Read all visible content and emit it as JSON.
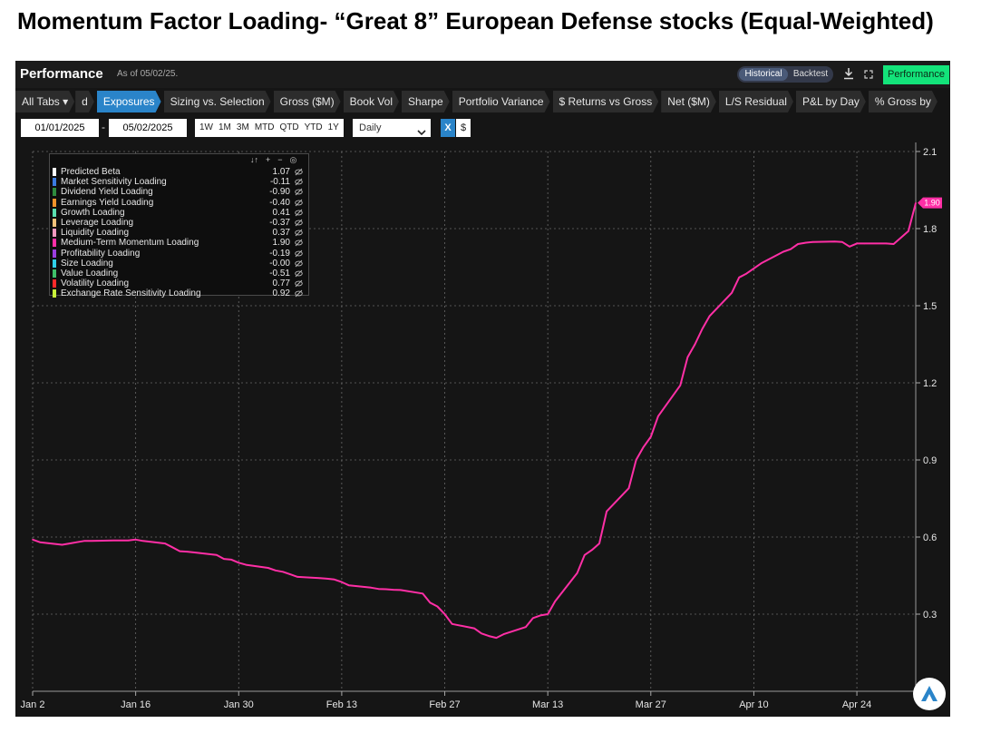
{
  "page_title": "Momentum Factor Loading- “Great 8” European Defense stocks (Equal-Weighted)",
  "header": {
    "title": "Performance",
    "as_of": "As of 05/02/25.",
    "mode_historical": "Historical",
    "mode_backtest": "Backtest",
    "performance_button": "Performance"
  },
  "tabs": [
    {
      "label": "All Tabs ▾",
      "active": false
    },
    {
      "label": "d",
      "active": false
    },
    {
      "label": "Exposures",
      "active": true
    },
    {
      "label": "Sizing vs. Selection",
      "active": false
    },
    {
      "label": "Gross ($M)",
      "active": false
    },
    {
      "label": "Book Vol",
      "active": false
    },
    {
      "label": "Sharpe",
      "active": false
    },
    {
      "label": "Portfolio Variance",
      "active": false
    },
    {
      "label": "$ Returns vs Gross",
      "active": false
    },
    {
      "label": "Net ($M)",
      "active": false
    },
    {
      "label": "L/S Residual",
      "active": false
    },
    {
      "label": "P&L by Day",
      "active": false
    },
    {
      "label": "% Gross by",
      "active": false
    }
  ],
  "controls": {
    "start_date": "01/01/2025",
    "date_separator": "-",
    "end_date": "05/02/2025",
    "ranges": [
      "1W",
      "1M",
      "3M",
      "MTD",
      "QTD",
      "YTD",
      "1Y"
    ],
    "frequency": "Daily",
    "x_button": "X",
    "currency_button": "$"
  },
  "legend": {
    "items": [
      {
        "name": "Predicted Beta",
        "value": "1.07",
        "color": "#ffffff"
      },
      {
        "name": "Market Sensitivity Loading",
        "value": "-0.11",
        "color": "#3b7be0"
      },
      {
        "name": "Dividend Yield Loading",
        "value": "-0.90",
        "color": "#2e8b3e"
      },
      {
        "name": "Earnings Yield Loading",
        "value": "-0.40",
        "color": "#f0932b"
      },
      {
        "name": "Growth Loading",
        "value": "0.41",
        "color": "#5be0b0"
      },
      {
        "name": "Leverage Loading",
        "value": "-0.37",
        "color": "#f2c27a"
      },
      {
        "name": "Liquidity Loading",
        "value": "0.37",
        "color": "#f29ac0"
      },
      {
        "name": "Medium-Term Momentum Loading",
        "value": "1.90",
        "color": "#ff2fa6"
      },
      {
        "name": "Profitability Loading",
        "value": "-0.19",
        "color": "#9b3ee0"
      },
      {
        "name": "Size Loading",
        "value": "-0.00",
        "color": "#2fd0e8"
      },
      {
        "name": "Value Loading",
        "value": "-0.51",
        "color": "#3fbf6a"
      },
      {
        "name": "Volatility Loading",
        "value": "0.77",
        "color": "#ff2a2a"
      },
      {
        "name": "Exchange Rate Sensitivity Loading",
        "value": "0.92",
        "color": "#c8f03a"
      }
    ]
  },
  "chart_data": {
    "type": "line",
    "title": "Momentum Factor Loading- “Great 8” European Defense stocks (Equal-Weighted)",
    "series": [
      {
        "name": "Medium-Term Momentum Loading",
        "color": "#ff2fa6",
        "last_value_label": "1.90",
        "points": [
          [
            "2025-01-02",
            0.59
          ],
          [
            "2025-01-03",
            0.58
          ],
          [
            "2025-01-06",
            0.57
          ],
          [
            "2025-01-07",
            0.575
          ],
          [
            "2025-01-08",
            0.58
          ],
          [
            "2025-01-09",
            0.585
          ],
          [
            "2025-01-10",
            0.585
          ],
          [
            "2025-01-13",
            0.587
          ],
          [
            "2025-01-14",
            0.587
          ],
          [
            "2025-01-15",
            0.587
          ],
          [
            "2025-01-16",
            0.59
          ],
          [
            "2025-01-17",
            0.585
          ],
          [
            "2025-01-20",
            0.575
          ],
          [
            "2025-01-21",
            0.56
          ],
          [
            "2025-01-22",
            0.545
          ],
          [
            "2025-01-23",
            0.543
          ],
          [
            "2025-01-24",
            0.54
          ],
          [
            "2025-01-27",
            0.53
          ],
          [
            "2025-01-28",
            0.515
          ],
          [
            "2025-01-29",
            0.512
          ],
          [
            "2025-01-30",
            0.5
          ],
          [
            "2025-01-31",
            0.492
          ],
          [
            "2025-02-03",
            0.48
          ],
          [
            "2025-02-04",
            0.47
          ],
          [
            "2025-02-05",
            0.465
          ],
          [
            "2025-02-06",
            0.455
          ],
          [
            "2025-02-07",
            0.445
          ],
          [
            "2025-02-10",
            0.44
          ],
          [
            "2025-02-11",
            0.438
          ],
          [
            "2025-02-12",
            0.435
          ],
          [
            "2025-02-13",
            0.425
          ],
          [
            "2025-02-14",
            0.412
          ],
          [
            "2025-02-17",
            0.403
          ],
          [
            "2025-02-18",
            0.398
          ],
          [
            "2025-02-19",
            0.397
          ],
          [
            "2025-02-20",
            0.395
          ],
          [
            "2025-02-21",
            0.394
          ],
          [
            "2025-02-24",
            0.38
          ],
          [
            "2025-02-25",
            0.345
          ],
          [
            "2025-02-26",
            0.33
          ],
          [
            "2025-02-27",
            0.3
          ],
          [
            "2025-02-28",
            0.262
          ],
          [
            "2025-03-03",
            0.245
          ],
          [
            "2025-03-04",
            0.225
          ],
          [
            "2025-03-05",
            0.215
          ],
          [
            "2025-03-06",
            0.208
          ],
          [
            "2025-03-07",
            0.222
          ],
          [
            "2025-03-10",
            0.25
          ],
          [
            "2025-03-11",
            0.285
          ],
          [
            "2025-03-12",
            0.295
          ],
          [
            "2025-03-13",
            0.3
          ],
          [
            "2025-03-14",
            0.35
          ],
          [
            "2025-03-17",
            0.46
          ],
          [
            "2025-03-18",
            0.53
          ],
          [
            "2025-03-19",
            0.55
          ],
          [
            "2025-03-20",
            0.575
          ],
          [
            "2025-03-21",
            0.7
          ],
          [
            "2025-03-24",
            0.79
          ],
          [
            "2025-03-25",
            0.9
          ],
          [
            "2025-03-26",
            0.95
          ],
          [
            "2025-03-27",
            0.99
          ],
          [
            "2025-03-28",
            1.07
          ],
          [
            "2025-03-31",
            1.19
          ],
          [
            "2025-04-01",
            1.3
          ],
          [
            "2025-04-02",
            1.35
          ],
          [
            "2025-04-03",
            1.41
          ],
          [
            "2025-04-04",
            1.46
          ],
          [
            "2025-04-07",
            1.55
          ],
          [
            "2025-04-08",
            1.61
          ],
          [
            "2025-04-09",
            1.625
          ],
          [
            "2025-04-10",
            1.645
          ],
          [
            "2025-04-11",
            1.665
          ],
          [
            "2025-04-14",
            1.71
          ],
          [
            "2025-04-15",
            1.72
          ],
          [
            "2025-04-16",
            1.74
          ],
          [
            "2025-04-17",
            1.745
          ],
          [
            "2025-04-18",
            1.748
          ],
          [
            "2025-04-21",
            1.75
          ],
          [
            "2025-04-22",
            1.748
          ],
          [
            "2025-04-23",
            1.73
          ],
          [
            "2025-04-24",
            1.742
          ],
          [
            "2025-04-25",
            1.742
          ],
          [
            "2025-04-28",
            1.742
          ],
          [
            "2025-04-29",
            1.74
          ],
          [
            "2025-04-30",
            1.765
          ],
          [
            "2025-05-01",
            1.79
          ],
          [
            "2025-05-02",
            1.9
          ]
        ]
      }
    ],
    "x_ticks": [
      {
        "date": "2025-01-02",
        "label": "Jan 2"
      },
      {
        "date": "2025-01-16",
        "label": "Jan 16"
      },
      {
        "date": "2025-01-30",
        "label": "Jan 30"
      },
      {
        "date": "2025-02-13",
        "label": "Feb 13"
      },
      {
        "date": "2025-02-27",
        "label": "Feb 27"
      },
      {
        "date": "2025-03-13",
        "label": "Mar 13"
      },
      {
        "date": "2025-03-27",
        "label": "Mar 27"
      },
      {
        "date": "2025-04-10",
        "label": "Apr 10"
      },
      {
        "date": "2025-04-24",
        "label": "Apr 24"
      }
    ],
    "y_ticks": [
      0.3,
      0.6,
      0.9,
      1.2,
      1.5,
      1.8,
      2.1
    ],
    "ylim": [
      0.0,
      2.1
    ],
    "xlim": [
      "2025-01-02",
      "2025-05-02"
    ],
    "grid": true,
    "y_axis_side": "right",
    "legend_position": "top-left"
  }
}
